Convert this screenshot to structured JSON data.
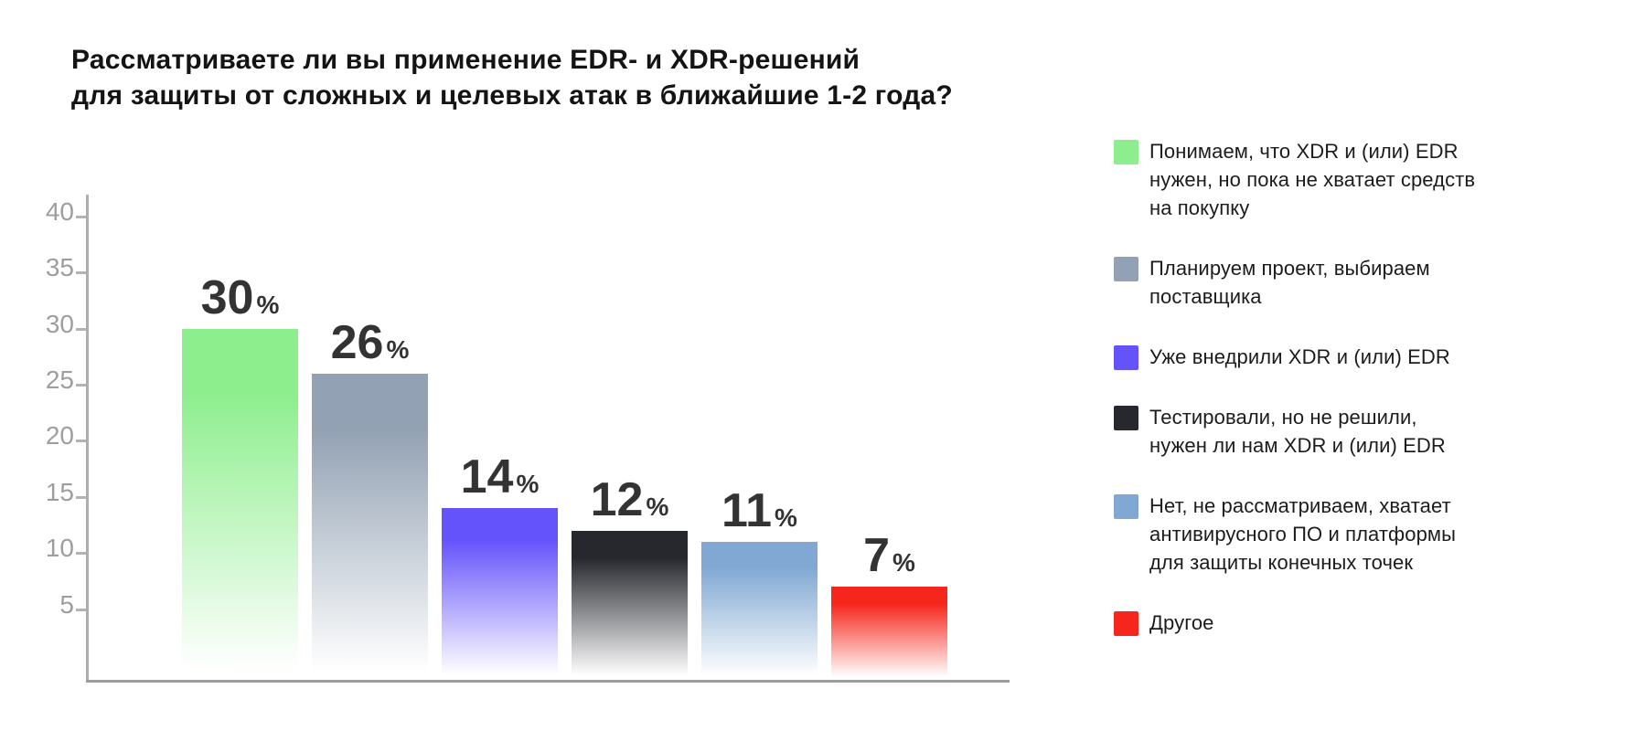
{
  "title": "Рассматриваете ли вы применение EDR- и XDR-решений\nдля защиты от сложных и целевых атак в ближайшие 1-2 года?",
  "chart_data": {
    "type": "bar",
    "title": "Рассматриваете ли вы применение EDR- и XDR-решений для защиты от сложных и целевых атак в ближайшие 1-2 года?",
    "categories": [
      "Понимаем, что XDR и (или) EDR\nнужен, но пока не хватает средств\nна покупку",
      "Планируем проект, выбираем\nпоставщика",
      "Уже внедрили XDR и (или) EDR",
      "Тестировали, но не решили,\nнужен ли нам XDR и (или) EDR",
      "Нет, не рассматриваем, хватает\nантивирусного ПО и платформы\nдля защиты конечных точек",
      "Другое"
    ],
    "values": [
      30,
      26,
      14,
      12,
      11,
      7
    ],
    "value_labels": [
      "30",
      "26",
      "14",
      "12",
      "11",
      "7"
    ],
    "value_suffix": "%",
    "bar_colors": [
      "#8DEE8D",
      "#92A1B3",
      "#6452FA",
      "#26282E",
      "#80A8D3",
      "#F6261C"
    ],
    "bar_gradient_to": "#ffffff",
    "yticks": [
      5,
      10,
      15,
      20,
      25,
      30,
      35,
      40
    ],
    "ylim": [
      0,
      40
    ],
    "xlabel": "",
    "ylabel": "",
    "grid": false,
    "legend_position": "right",
    "axis_color": "#aeaeae",
    "tick_label_color": "#9e9e9e",
    "value_label_color": "#333333"
  },
  "legend": {
    "items": [
      {
        "label": "Понимаем, что XDR и (или) EDR\nнужен, но пока не хватает средств\nна покупку",
        "color": "#8DEE8D"
      },
      {
        "label": "Планируем проект, выбираем\nпоставщика",
        "color": "#92A1B3"
      },
      {
        "label": "Уже внедрили XDR и (или) EDR",
        "color": "#6452FA"
      },
      {
        "label": "Тестировали, но не решили,\nнужен ли нам XDR и (или) EDR",
        "color": "#26282E"
      },
      {
        "label": "Нет, не рассматриваем, хватает\nантивирусного ПО и платформы\nдля защиты конечных точек",
        "color": "#80A8D3"
      },
      {
        "label": "Другое",
        "color": "#F6261C"
      }
    ]
  }
}
